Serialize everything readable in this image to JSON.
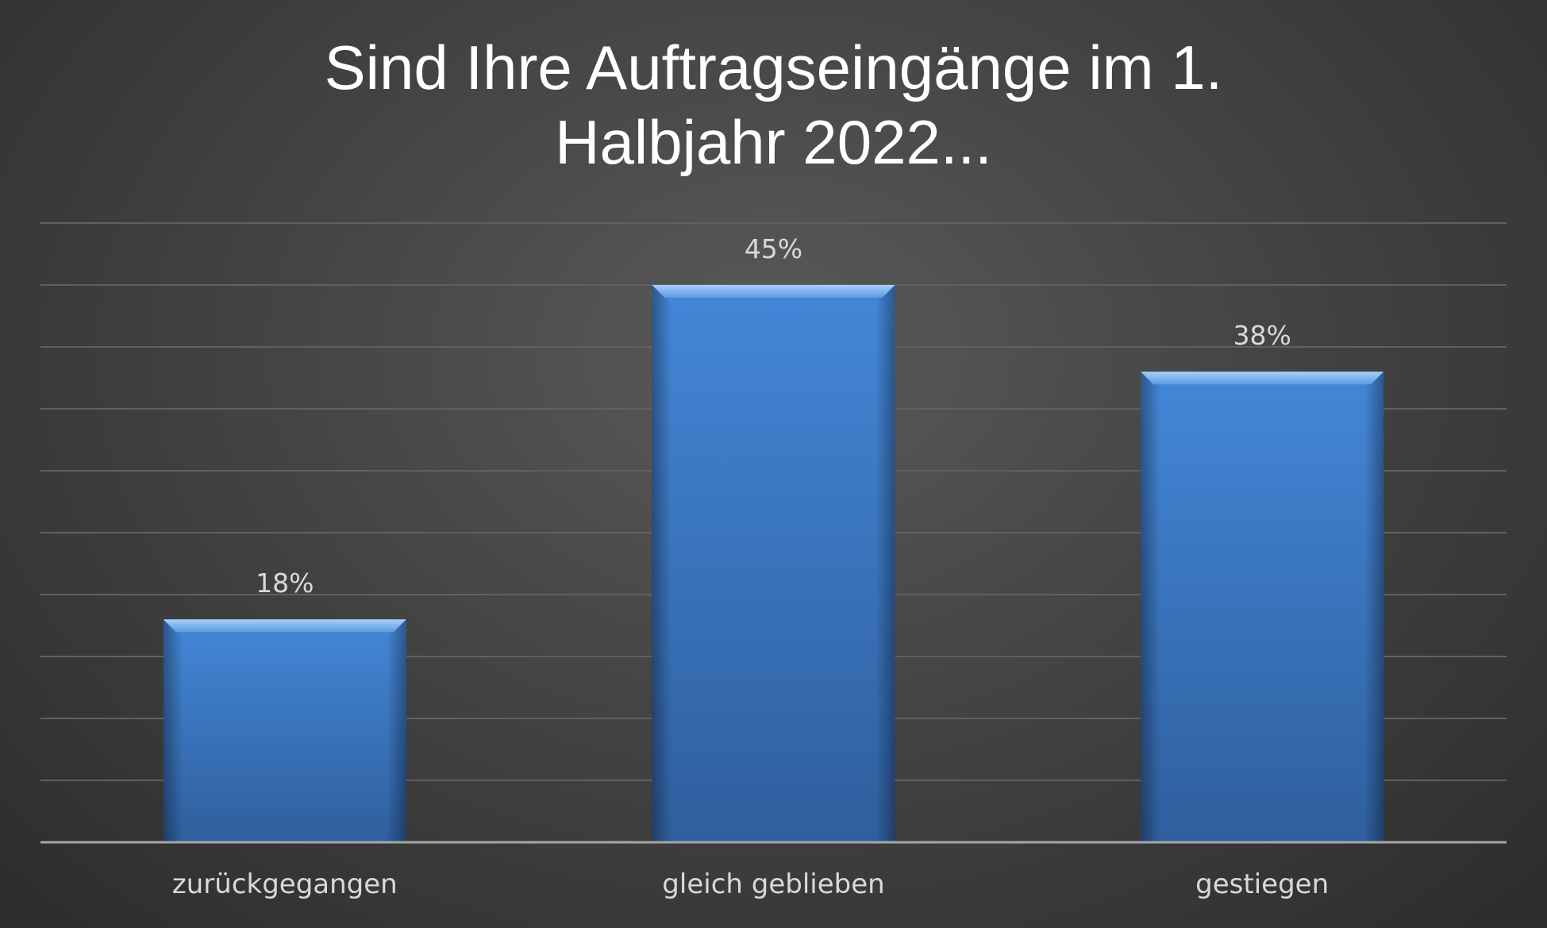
{
  "chart_data": {
    "type": "bar",
    "title": "Sind Ihre Auftragseingänge im 1. Halbjahr 2022...",
    "title_lines": [
      "Sind Ihre Auftragseingänge im 1.",
      "Halbjahr 2022..."
    ],
    "categories": [
      "zurückgegangen",
      "gleich geblieben",
      "gestiegen"
    ],
    "values": [
      18,
      45,
      38
    ],
    "data_labels": [
      "18%",
      "45%",
      "38%"
    ],
    "value_unit": "%",
    "ylim": [
      0,
      50
    ],
    "grid": true,
    "gridline_step": 5,
    "legend": "none",
    "xlabel": "",
    "ylabel": "",
    "colors": {
      "bar": "#3f7fd0",
      "bar_top": "#7fb4f0",
      "bar_bottom": "#2f5f9e",
      "background": "#444444",
      "gridline": "#606060",
      "axis": "#a6a6a6",
      "title": "#ffffff",
      "labels": "#d9d9d9"
    }
  }
}
